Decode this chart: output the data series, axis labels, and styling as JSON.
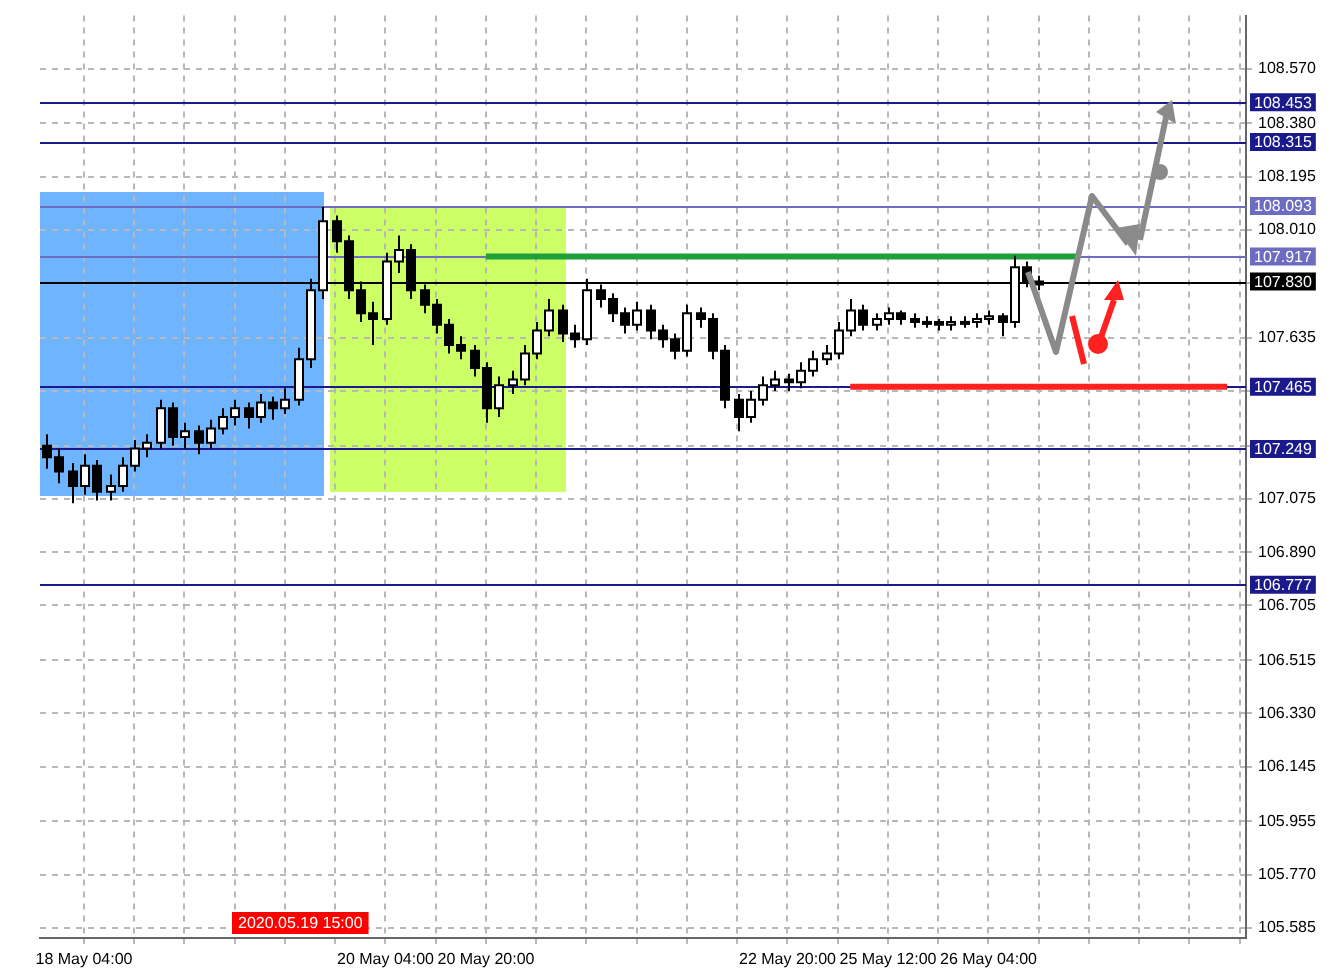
{
  "chart_data": {
    "type": "candlestick",
    "categories": [
      null,
      null,
      null,
      "18 May 04:00",
      null,
      null,
      null,
      null,
      null,
      null,
      null,
      null,
      null,
      null,
      null,
      null,
      null,
      null,
      null,
      null,
      null,
      null,
      null,
      null,
      null,
      null,
      null,
      "20 May 04:00",
      null,
      null,
      null,
      null,
      null,
      null,
      null,
      "20 May 20:00",
      null,
      null,
      null,
      null,
      null,
      null,
      null,
      null,
      null,
      null,
      null,
      null,
      null,
      null,
      null,
      null,
      null,
      null,
      null,
      null,
      null,
      null,
      null,
      "22 May 20:00",
      null,
      null,
      null,
      null,
      null,
      null,
      null,
      "25 May 12:00",
      null,
      null,
      null,
      null,
      null,
      null,
      null,
      "26 May 04:00",
      null,
      null,
      null,
      null,
      null,
      null,
      null,
      null,
      null,
      null,
      null,
      null,
      null,
      null,
      null,
      null,
      null,
      null,
      null,
      null
    ],
    "ohlc": [
      [
        107.26,
        107.3,
        107.18,
        107.22
      ],
      [
        107.22,
        107.25,
        107.13,
        107.17
      ],
      [
        107.17,
        107.2,
        107.06,
        107.12
      ],
      [
        107.12,
        107.23,
        107.09,
        107.19
      ],
      [
        107.19,
        107.21,
        107.07,
        107.1
      ],
      [
        107.1,
        107.16,
        107.07,
        107.12
      ],
      [
        107.12,
        107.22,
        107.1,
        107.19
      ],
      [
        107.19,
        107.28,
        107.17,
        107.25
      ],
      [
        107.25,
        107.3,
        107.22,
        107.27
      ],
      [
        107.27,
        107.42,
        107.25,
        107.39
      ],
      [
        107.39,
        107.41,
        107.26,
        107.29
      ],
      [
        107.29,
        107.34,
        107.25,
        107.31
      ],
      [
        107.31,
        107.33,
        107.23,
        107.27
      ],
      [
        107.27,
        107.35,
        107.25,
        107.32
      ],
      [
        107.32,
        107.39,
        107.3,
        107.36
      ],
      [
        107.36,
        107.42,
        107.33,
        107.39
      ],
      [
        107.39,
        107.41,
        107.32,
        107.36
      ],
      [
        107.36,
        107.44,
        107.34,
        107.41
      ],
      [
        107.41,
        107.43,
        107.35,
        107.39
      ],
      [
        107.39,
        107.46,
        107.37,
        107.42
      ],
      [
        107.42,
        107.6,
        107.4,
        107.56
      ],
      [
        107.56,
        107.84,
        107.53,
        107.8
      ],
      [
        107.8,
        108.09,
        107.77,
        108.04
      ],
      [
        108.04,
        108.06,
        107.93,
        107.97
      ],
      [
        107.97,
        107.99,
        107.77,
        107.8
      ],
      [
        107.8,
        107.83,
        107.69,
        107.72
      ],
      [
        107.72,
        107.76,
        107.61,
        107.7
      ],
      [
        107.7,
        107.93,
        107.68,
        107.9
      ],
      [
        107.9,
        107.99,
        107.86,
        107.94
      ],
      [
        107.94,
        107.96,
        107.77,
        107.8
      ],
      [
        107.8,
        107.82,
        107.72,
        107.75
      ],
      [
        107.75,
        107.77,
        107.65,
        107.68
      ],
      [
        107.68,
        107.7,
        107.58,
        107.61
      ],
      [
        107.61,
        107.64,
        107.56,
        107.59
      ],
      [
        107.59,
        107.61,
        107.5,
        107.53
      ],
      [
        107.53,
        107.55,
        107.34,
        107.39
      ],
      [
        107.39,
        107.5,
        107.36,
        107.47
      ],
      [
        107.47,
        107.52,
        107.44,
        107.49
      ],
      [
        107.49,
        107.61,
        107.47,
        107.58
      ],
      [
        107.58,
        107.69,
        107.56,
        107.66
      ],
      [
        107.66,
        107.77,
        107.64,
        107.73
      ],
      [
        107.73,
        107.75,
        107.62,
        107.65
      ],
      [
        107.65,
        107.68,
        107.6,
        107.63
      ],
      [
        107.63,
        107.84,
        107.61,
        107.8
      ],
      [
        107.8,
        107.82,
        107.74,
        107.77
      ],
      [
        107.77,
        107.79,
        107.69,
        107.72
      ],
      [
        107.72,
        107.74,
        107.65,
        107.68
      ],
      [
        107.68,
        107.76,
        107.66,
        107.73
      ],
      [
        107.73,
        107.75,
        107.63,
        107.66
      ],
      [
        107.66,
        107.68,
        107.6,
        107.63
      ],
      [
        107.63,
        107.65,
        107.56,
        107.59
      ],
      [
        107.59,
        107.75,
        107.57,
        107.72
      ],
      [
        107.72,
        107.74,
        107.67,
        107.7
      ],
      [
        107.7,
        107.72,
        107.56,
        107.59
      ],
      [
        107.59,
        107.61,
        107.39,
        107.42
      ],
      [
        107.42,
        107.44,
        107.31,
        107.36
      ],
      [
        107.36,
        107.45,
        107.34,
        107.42
      ],
      [
        107.42,
        107.5,
        107.4,
        107.47
      ],
      [
        107.47,
        107.52,
        107.45,
        107.49
      ],
      [
        107.49,
        107.51,
        107.45,
        107.48
      ],
      [
        107.48,
        107.55,
        107.46,
        107.52
      ],
      [
        107.52,
        107.59,
        107.5,
        107.56
      ],
      [
        107.56,
        107.61,
        107.54,
        107.58
      ],
      [
        107.58,
        107.69,
        107.56,
        107.66
      ],
      [
        107.66,
        107.77,
        107.64,
        107.73
      ],
      [
        107.73,
        107.75,
        107.66,
        107.68
      ],
      [
        107.68,
        107.72,
        107.66,
        107.7
      ],
      [
        107.7,
        107.74,
        107.68,
        107.72
      ],
      [
        107.72,
        107.73,
        107.68,
        107.7
      ],
      [
        107.7,
        107.72,
        107.67,
        107.69
      ],
      [
        107.69,
        107.71,
        107.67,
        107.69
      ],
      [
        107.69,
        107.7,
        107.66,
        107.68
      ],
      [
        107.68,
        107.71,
        107.66,
        107.69
      ],
      [
        107.69,
        107.71,
        107.67,
        107.69
      ],
      [
        107.69,
        107.72,
        107.67,
        107.7
      ],
      [
        107.7,
        107.73,
        107.68,
        107.71
      ],
      [
        107.71,
        107.72,
        107.64,
        107.69
      ],
      [
        107.69,
        107.92,
        107.67,
        107.88
      ],
      [
        107.88,
        107.9,
        107.81,
        107.83
      ],
      [
        107.83,
        107.85,
        107.8,
        107.82
      ],
      null,
      null,
      null,
      null,
      null,
      null,
      null,
      null,
      null,
      null,
      null,
      null,
      null,
      null,
      null,
      null
    ],
    "colors": [
      "#000000",
      "#000000",
      "#000000",
      "#ffffff",
      "#000000",
      "#ffffff",
      "#ffffff",
      "#ffffff",
      "#ffffff",
      "#ffffff",
      "#000000",
      "#ffffff",
      "#000000",
      "#ffffff",
      "#ffffff",
      "#ffffff",
      "#000000",
      "#ffffff",
      "#000000",
      "#ffffff",
      "#ffffff",
      "#ffffff",
      "#ffffff",
      "#000000",
      "#000000",
      "#000000",
      "#000000",
      "#ffffff",
      "#ffffff",
      "#000000",
      "#000000",
      "#000000",
      "#000000",
      "#000000",
      "#000000",
      "#000000",
      "#ffffff",
      "#ffffff",
      "#ffffff",
      "#ffffff",
      "#ffffff",
      "#000000",
      "#000000",
      "#ffffff",
      "#000000",
      "#000000",
      "#000000",
      "#ffffff",
      "#000000",
      "#000000",
      "#000000",
      "#ffffff",
      "#000000",
      "#000000",
      "#000000",
      "#000000",
      "#ffffff",
      "#ffffff",
      "#ffffff",
      "#000000",
      "#ffffff",
      "#ffffff",
      "#ffffff",
      "#ffffff",
      "#ffffff",
      "#000000",
      "#ffffff",
      "#ffffff",
      "#000000",
      "#000000",
      "#ffffff",
      "#000000",
      "#ffffff",
      "#ffffff",
      "#ffffff",
      "#ffffff",
      "#000000",
      "#ffffff",
      "#000000",
      "#000000",
      null,
      null,
      null,
      null,
      null,
      null,
      null,
      null,
      null,
      null,
      null,
      null,
      null,
      null,
      null,
      null
    ],
    "series": [
      {
        "type": "line",
        "color": "#1fa03a",
        "values": [
          null,
          null,
          null,
          null,
          null,
          null,
          null,
          null,
          null,
          null,
          null,
          null,
          null,
          null,
          null,
          null,
          null,
          null,
          null,
          null,
          null,
          null,
          null,
          null,
          null,
          null,
          null,
          null,
          null,
          null,
          null,
          null,
          null,
          null,
          null,
          107.917,
          107.917,
          107.917,
          107.917,
          107.917,
          107.917,
          107.917,
          107.917,
          107.917,
          107.917,
          107.917,
          107.917,
          107.917,
          107.917,
          107.917,
          107.917,
          107.917,
          107.917,
          107.917,
          107.917,
          107.917,
          107.917,
          107.917,
          107.917,
          107.917,
          107.917,
          107.917,
          107.917,
          107.917,
          107.917,
          107.917,
          107.917,
          107.917,
          107.917,
          107.917,
          107.917,
          107.917,
          107.917,
          107.917,
          107.917,
          107.917,
          107.917,
          107.917,
          107.917,
          107.917,
          107.917,
          107.917,
          107.917,
          null,
          null,
          null,
          null,
          null,
          null,
          null,
          null,
          null,
          null,
          null,
          null,
          null
        ]
      },
      {
        "type": "line",
        "color": "#ff2020",
        "values": [
          null,
          null,
          null,
          null,
          null,
          null,
          null,
          null,
          null,
          null,
          null,
          null,
          null,
          null,
          null,
          null,
          null,
          null,
          null,
          null,
          null,
          null,
          null,
          null,
          null,
          null,
          null,
          null,
          null,
          null,
          null,
          null,
          null,
          null,
          null,
          null,
          null,
          null,
          null,
          null,
          null,
          null,
          null,
          null,
          null,
          null,
          null,
          null,
          null,
          null,
          null,
          null,
          null,
          null,
          null,
          null,
          null,
          null,
          null,
          null,
          null,
          null,
          null,
          null,
          107.465,
          107.465,
          107.465,
          107.465,
          107.465,
          107.465,
          107.465,
          107.465,
          107.465,
          107.465,
          107.465,
          107.465,
          107.465,
          107.465,
          107.465,
          107.465,
          107.465,
          107.465,
          107.465,
          107.465,
          107.465,
          107.465,
          107.465,
          107.465,
          107.465,
          107.465,
          107.465,
          107.465,
          107.465,
          107.465,
          107.465,
          null
        ]
      }
    ],
    "ylim": [
      105.55,
      108.754
    ],
    "yticks": [
      105.585,
      {
        "value": 105.77,
        "label": "105.770"
      },
      105.955,
      106.145,
      {
        "value": 106.33,
        "label": "106.330"
      },
      106.515,
      106.705,
      {
        "value": 106.89,
        "label": "106.890"
      },
      107.075,
      {
        "value": 107.26,
        "label": null
      },
      {
        "value": 107.45,
        "label": null
      },
      107.635,
      {
        "value": 107.825,
        "label": null
      },
      {
        "value": 108.01,
        "label": "108.010"
      },
      108.195,
      {
        "value": 108.38,
        "label": "108.380"
      },
      {
        "value": 108.57,
        "label": "108.570"
      }
    ],
    "grid": true,
    "ref_lines": [
      {
        "axis": "y",
        "value": 108.453,
        "label": "108.453",
        "color": "#1a1a8c"
      },
      {
        "axis": "y",
        "value": 108.315,
        "label": "108.315",
        "color": "#1a1a8c"
      },
      {
        "axis": "y",
        "value": 108.093,
        "label": "108.093",
        "color": "#6c6cc0"
      },
      {
        "axis": "y",
        "value": 107.917,
        "label": "107.917",
        "color": "#6c6cc0"
      },
      {
        "axis": "y",
        "value": 107.83,
        "label": "107.830",
        "color": "#000000"
      },
      {
        "axis": "y",
        "value": 107.465,
        "label": "107.465",
        "color": "#1a1a8c"
      },
      {
        "axis": "y",
        "value": 107.249,
        "label": "107.249",
        "color": "#1a1a8c"
      },
      {
        "axis": "y",
        "value": 106.777,
        "label": "106.777",
        "color": "#1a1a8c"
      }
    ],
    "annotations": [
      "2020.05.19 15:00"
    ]
  }
}
